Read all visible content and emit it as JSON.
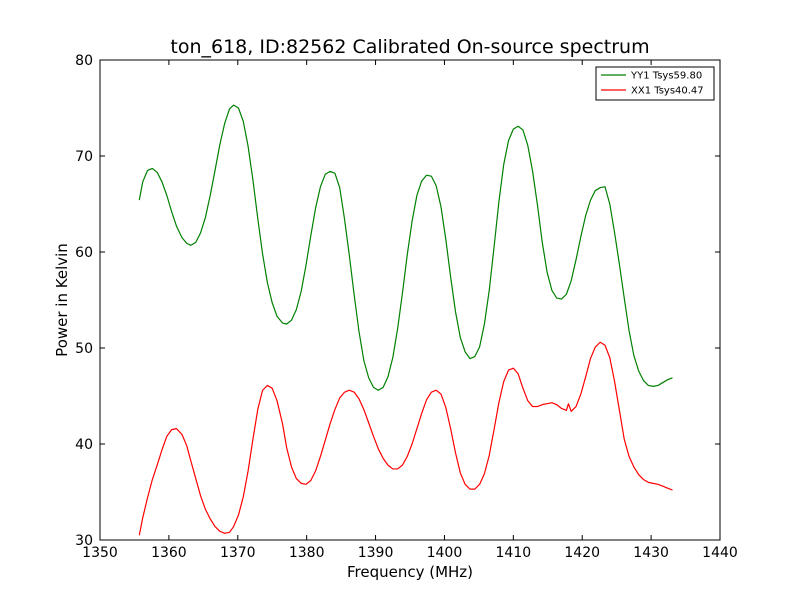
{
  "chart_data": {
    "type": "line",
    "title": "ton_618, ID:82562 Calibrated On-source spectrum",
    "xlabel": "Frequency (MHz)",
    "ylabel": "Power in Kelvin",
    "xlim": [
      1350,
      1440
    ],
    "ylim": [
      30,
      80
    ],
    "xticks": [
      1350,
      1360,
      1370,
      1380,
      1390,
      1400,
      1410,
      1420,
      1430,
      1440
    ],
    "yticks": [
      30,
      40,
      50,
      60,
      70,
      80
    ],
    "grid": false,
    "legend_position": "top-right",
    "colors": {
      "yy1": "#008000",
      "xx1": "#ff0000"
    },
    "series": [
      {
        "name": "YY1 Tsys59.80",
        "color": "#008000",
        "points": [
          [
            1355.7,
            65.4
          ],
          [
            1356.2,
            67.3
          ],
          [
            1356.9,
            68.5
          ],
          [
            1357.6,
            68.7
          ],
          [
            1358.3,
            68.3
          ],
          [
            1359.0,
            67.3
          ],
          [
            1359.7,
            65.9
          ],
          [
            1360.4,
            64.2
          ],
          [
            1361.1,
            62.7
          ],
          [
            1361.9,
            61.5
          ],
          [
            1362.6,
            60.9
          ],
          [
            1363.2,
            60.7
          ],
          [
            1363.9,
            61.0
          ],
          [
            1364.6,
            62.0
          ],
          [
            1365.3,
            63.6
          ],
          [
            1366.0,
            65.9
          ],
          [
            1366.7,
            68.5
          ],
          [
            1367.4,
            71.2
          ],
          [
            1368.1,
            73.4
          ],
          [
            1368.8,
            74.9
          ],
          [
            1369.4,
            75.3
          ],
          [
            1370.1,
            75.0
          ],
          [
            1370.8,
            73.6
          ],
          [
            1371.5,
            71.0
          ],
          [
            1372.2,
            67.5
          ],
          [
            1372.9,
            63.5
          ],
          [
            1373.6,
            59.8
          ],
          [
            1374.3,
            56.8
          ],
          [
            1375.0,
            54.7
          ],
          [
            1375.7,
            53.3
          ],
          [
            1376.5,
            52.6
          ],
          [
            1377.1,
            52.5
          ],
          [
            1377.8,
            52.9
          ],
          [
            1378.5,
            54.0
          ],
          [
            1379.2,
            55.9
          ],
          [
            1379.9,
            58.6
          ],
          [
            1380.6,
            61.7
          ],
          [
            1381.3,
            64.6
          ],
          [
            1382.0,
            66.8
          ],
          [
            1382.7,
            68.1
          ],
          [
            1383.4,
            68.4
          ],
          [
            1384.1,
            68.2
          ],
          [
            1384.8,
            66.7
          ],
          [
            1385.5,
            63.4
          ],
          [
            1386.2,
            59.6
          ],
          [
            1386.9,
            55.5
          ],
          [
            1387.6,
            51.7
          ],
          [
            1388.3,
            48.7
          ],
          [
            1389.0,
            46.9
          ],
          [
            1389.7,
            45.9
          ],
          [
            1390.4,
            45.6
          ],
          [
            1391.1,
            45.9
          ],
          [
            1391.8,
            47.0
          ],
          [
            1392.5,
            49.0
          ],
          [
            1393.2,
            52.0
          ],
          [
            1393.9,
            55.7
          ],
          [
            1394.6,
            59.7
          ],
          [
            1395.3,
            63.2
          ],
          [
            1396.0,
            65.9
          ],
          [
            1396.7,
            67.4
          ],
          [
            1397.4,
            68.0
          ],
          [
            1398.1,
            67.9
          ],
          [
            1398.8,
            66.9
          ],
          [
            1399.5,
            64.7
          ],
          [
            1400.2,
            61.3
          ],
          [
            1400.9,
            57.4
          ],
          [
            1401.6,
            53.8
          ],
          [
            1402.3,
            51.1
          ],
          [
            1403.0,
            49.6
          ],
          [
            1403.7,
            48.9
          ],
          [
            1404.4,
            49.1
          ],
          [
            1405.1,
            50.1
          ],
          [
            1405.8,
            52.5
          ],
          [
            1406.5,
            56.0
          ],
          [
            1407.2,
            60.5
          ],
          [
            1407.9,
            65.2
          ],
          [
            1408.6,
            69.1
          ],
          [
            1409.3,
            71.6
          ],
          [
            1410.0,
            72.8
          ],
          [
            1410.7,
            73.1
          ],
          [
            1411.4,
            72.7
          ],
          [
            1412.1,
            71.1
          ],
          [
            1412.8,
            68.4
          ],
          [
            1413.5,
            64.9
          ],
          [
            1414.2,
            61.0
          ],
          [
            1414.9,
            57.9
          ],
          [
            1415.6,
            56.0
          ],
          [
            1416.3,
            55.2
          ],
          [
            1417.0,
            55.1
          ],
          [
            1417.7,
            55.6
          ],
          [
            1418.4,
            57.0
          ],
          [
            1419.1,
            59.2
          ],
          [
            1419.8,
            61.6
          ],
          [
            1420.5,
            63.8
          ],
          [
            1421.2,
            65.4
          ],
          [
            1421.9,
            66.4
          ],
          [
            1422.6,
            66.7
          ],
          [
            1423.3,
            66.8
          ],
          [
            1424.0,
            65.0
          ],
          [
            1424.7,
            62.0
          ],
          [
            1425.4,
            58.7
          ],
          [
            1426.1,
            55.2
          ],
          [
            1426.8,
            51.8
          ],
          [
            1427.5,
            49.2
          ],
          [
            1428.2,
            47.6
          ],
          [
            1428.9,
            46.6
          ],
          [
            1429.6,
            46.1
          ],
          [
            1430.3,
            46.0
          ],
          [
            1431.0,
            46.1
          ],
          [
            1431.7,
            46.4
          ],
          [
            1432.4,
            46.7
          ],
          [
            1433.1,
            46.9
          ]
        ]
      },
      {
        "name": "XX1 Tsys40.47",
        "color": "#ff0000",
        "points": [
          [
            1355.7,
            30.5
          ],
          [
            1356.2,
            32.3
          ],
          [
            1356.9,
            34.4
          ],
          [
            1357.6,
            36.3
          ],
          [
            1358.3,
            37.8
          ],
          [
            1359.0,
            39.4
          ],
          [
            1359.7,
            40.8
          ],
          [
            1360.4,
            41.5
          ],
          [
            1361.1,
            41.6
          ],
          [
            1361.9,
            41.0
          ],
          [
            1362.6,
            39.8
          ],
          [
            1363.2,
            38.2
          ],
          [
            1363.9,
            36.4
          ],
          [
            1364.6,
            34.6
          ],
          [
            1365.3,
            33.2
          ],
          [
            1366.0,
            32.2
          ],
          [
            1366.7,
            31.4
          ],
          [
            1367.4,
            30.9
          ],
          [
            1368.1,
            30.7
          ],
          [
            1368.8,
            30.8
          ],
          [
            1369.4,
            31.4
          ],
          [
            1370.1,
            32.6
          ],
          [
            1370.8,
            34.5
          ],
          [
            1371.5,
            37.2
          ],
          [
            1372.2,
            40.5
          ],
          [
            1372.9,
            43.6
          ],
          [
            1373.6,
            45.6
          ],
          [
            1374.3,
            46.1
          ],
          [
            1375.0,
            45.8
          ],
          [
            1375.7,
            44.5
          ],
          [
            1376.5,
            42.1
          ],
          [
            1377.1,
            39.6
          ],
          [
            1377.8,
            37.6
          ],
          [
            1378.5,
            36.4
          ],
          [
            1379.2,
            35.9
          ],
          [
            1379.9,
            35.8
          ],
          [
            1380.6,
            36.2
          ],
          [
            1381.3,
            37.2
          ],
          [
            1382.0,
            38.7
          ],
          [
            1382.7,
            40.4
          ],
          [
            1383.4,
            42.1
          ],
          [
            1384.1,
            43.6
          ],
          [
            1384.8,
            44.8
          ],
          [
            1385.5,
            45.4
          ],
          [
            1386.2,
            45.6
          ],
          [
            1386.9,
            45.4
          ],
          [
            1387.6,
            44.7
          ],
          [
            1388.3,
            43.6
          ],
          [
            1389.0,
            42.2
          ],
          [
            1389.7,
            40.8
          ],
          [
            1390.4,
            39.5
          ],
          [
            1391.1,
            38.5
          ],
          [
            1391.8,
            37.8
          ],
          [
            1392.5,
            37.4
          ],
          [
            1393.2,
            37.4
          ],
          [
            1393.9,
            37.8
          ],
          [
            1394.6,
            38.7
          ],
          [
            1395.3,
            40.0
          ],
          [
            1396.0,
            41.6
          ],
          [
            1396.7,
            43.2
          ],
          [
            1397.4,
            44.6
          ],
          [
            1398.1,
            45.4
          ],
          [
            1398.8,
            45.6
          ],
          [
            1399.5,
            45.2
          ],
          [
            1400.2,
            43.8
          ],
          [
            1400.9,
            41.6
          ],
          [
            1401.6,
            39.1
          ],
          [
            1402.3,
            37.0
          ],
          [
            1403.0,
            35.8
          ],
          [
            1403.7,
            35.3
          ],
          [
            1404.4,
            35.3
          ],
          [
            1405.1,
            35.8
          ],
          [
            1405.8,
            36.9
          ],
          [
            1406.5,
            38.8
          ],
          [
            1407.2,
            41.5
          ],
          [
            1407.9,
            44.3
          ],
          [
            1408.6,
            46.5
          ],
          [
            1409.3,
            47.7
          ],
          [
            1410.0,
            47.9
          ],
          [
            1410.7,
            47.3
          ],
          [
            1411.4,
            45.8
          ],
          [
            1412.1,
            44.5
          ],
          [
            1412.8,
            43.9
          ],
          [
            1413.5,
            43.9
          ],
          [
            1414.2,
            44.1
          ],
          [
            1414.9,
            44.2
          ],
          [
            1415.6,
            44.3
          ],
          [
            1416.3,
            44.1
          ],
          [
            1417.0,
            43.7
          ],
          [
            1417.7,
            43.5
          ],
          [
            1418.0,
            44.2
          ],
          [
            1418.4,
            43.4
          ],
          [
            1419.1,
            43.9
          ],
          [
            1419.8,
            45.2
          ],
          [
            1420.5,
            47.0
          ],
          [
            1421.2,
            48.9
          ],
          [
            1421.9,
            50.1
          ],
          [
            1422.6,
            50.6
          ],
          [
            1423.3,
            50.3
          ],
          [
            1424.0,
            49.0
          ],
          [
            1424.7,
            46.5
          ],
          [
            1425.4,
            43.5
          ],
          [
            1426.1,
            40.5
          ],
          [
            1426.8,
            38.7
          ],
          [
            1427.5,
            37.6
          ],
          [
            1428.2,
            36.8
          ],
          [
            1428.9,
            36.3
          ],
          [
            1429.6,
            36.0
          ],
          [
            1430.3,
            35.9
          ],
          [
            1431.0,
            35.8
          ],
          [
            1431.7,
            35.6
          ],
          [
            1432.4,
            35.4
          ],
          [
            1433.1,
            35.2
          ]
        ]
      }
    ]
  }
}
